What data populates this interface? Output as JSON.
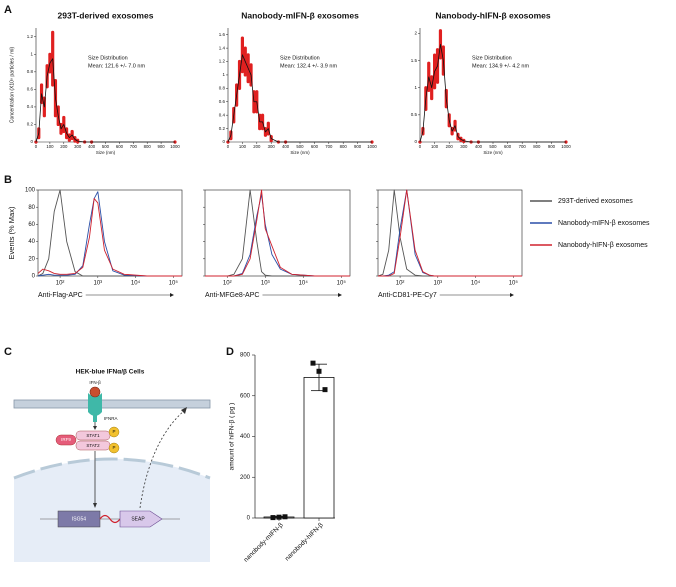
{
  "panel_labels": [
    "A",
    "B",
    "C",
    "D"
  ],
  "diagram": {
    "title": "HEK-blue IFNα/β Cells",
    "ligand": "IFN-β",
    "receptor": "IFNRA",
    "stat1": "STAT1",
    "stat2": "STAT2",
    "irf9": "IRF9",
    "phospho": [
      "P",
      "P"
    ],
    "gene": "ISG54",
    "reporter": "SEAP"
  },
  "chart_data": [
    {
      "type": "line",
      "title": "293T-derived exosomes",
      "xlabel": "Size (nm)",
      "ylabel": "Concentration (X10⁸ particles / ml)",
      "annotations": [
        "Size Distribution",
        "Mean: 121.6 +/- 7.0 nm"
      ],
      "x": [
        0,
        20,
        40,
        60,
        80,
        100,
        120,
        140,
        160,
        180,
        200,
        220,
        240,
        260,
        280,
        300,
        350,
        400,
        1000
      ],
      "series": [
        {
          "color": "#111111",
          "error_color": "#e02020",
          "values": [
            0,
            0.1,
            0.55,
            0.4,
            0.75,
            0.9,
            0.95,
            0.5,
            0.3,
            0.15,
            0.2,
            0.1,
            0.05,
            0.08,
            0.03,
            0.01,
            0,
            0,
            0
          ],
          "errors": [
            0,
            0.05,
            0.1,
            0.1,
            0.12,
            0.1,
            0.3,
            0.2,
            0.1,
            0.05,
            0.08,
            0.05,
            0.03,
            0.04,
            0.02,
            0.01,
            0,
            0,
            0
          ]
        }
      ],
      "xlim": [
        0,
        1000
      ],
      "xticks": [
        0,
        100,
        200,
        300,
        400,
        500,
        600,
        700,
        800,
        900,
        1000
      ],
      "ylim": [
        0,
        1.3
      ],
      "yticks": [
        0,
        0.2,
        0.4,
        0.6,
        0.8,
        1,
        1.2
      ]
    },
    {
      "type": "line",
      "title": "Nanobody-mIFN-β exosomes",
      "xlabel": "Size (nm)",
      "annotations": [
        "Size Distribution",
        "Mean: 132.4 +/- 3.9 nm"
      ],
      "x": [
        0,
        20,
        40,
        60,
        80,
        100,
        120,
        140,
        160,
        180,
        200,
        220,
        240,
        260,
        280,
        300,
        350,
        400,
        1000
      ],
      "series": [
        {
          "color": "#111111",
          "error_color": "#e02020",
          "values": [
            0,
            0.1,
            0.4,
            0.7,
            1.0,
            1.3,
            1.2,
            1.1,
            1.0,
            0.6,
            0.6,
            0.3,
            0.3,
            0.15,
            0.2,
            0.05,
            0,
            0,
            0
          ],
          "errors": [
            0,
            0.05,
            0.1,
            0.15,
            0.2,
            0.25,
            0.2,
            0.2,
            0.15,
            0.15,
            0.15,
            0.1,
            0.1,
            0.05,
            0.08,
            0.03,
            0,
            0,
            0
          ]
        }
      ],
      "xlim": [
        0,
        1000
      ],
      "xticks": [
        0,
        100,
        200,
        300,
        400,
        500,
        600,
        700,
        800,
        900,
        1000
      ],
      "ylim": [
        0,
        1.7
      ],
      "yticks": [
        0,
        0.2,
        0.4,
        0.6,
        0.8,
        1,
        1.2,
        1.4,
        1.6
      ]
    },
    {
      "type": "line",
      "title": "Nanobody-hIFN-β exosomes",
      "xlabel": "Size (nm)",
      "annotations": [
        "Size Distribution",
        "Mean: 134.9 +/- 4.2 nm"
      ],
      "x": [
        0,
        20,
        40,
        60,
        80,
        100,
        120,
        140,
        160,
        180,
        200,
        220,
        240,
        260,
        280,
        300,
        350,
        400,
        1000
      ],
      "series": [
        {
          "color": "#111111",
          "error_color": "#e02020",
          "values": [
            0,
            0.2,
            0.8,
            1.2,
            1.0,
            1.3,
            1.4,
            1.8,
            1.5,
            0.8,
            0.4,
            0.2,
            0.3,
            0.1,
            0.05,
            0.02,
            0,
            0,
            0
          ],
          "errors": [
            0,
            0.05,
            0.2,
            0.25,
            0.2,
            0.3,
            0.3,
            0.25,
            0.25,
            0.15,
            0.1,
            0.05,
            0.08,
            0.04,
            0.02,
            0.01,
            0,
            0,
            0
          ]
        }
      ],
      "xlim": [
        0,
        1000
      ],
      "xticks": [
        0,
        100,
        200,
        300,
        400,
        500,
        600,
        700,
        800,
        900,
        1000
      ],
      "ylim": [
        0,
        2.1
      ],
      "yticks": [
        0,
        0.5,
        1,
        1.5,
        2
      ]
    },
    {
      "type": "line",
      "xlog": true,
      "frame": true,
      "xlabel": "Anti-Flag-APC",
      "ylabel": "Events (% Max)",
      "x": [
        26,
        35,
        50,
        70,
        100,
        150,
        250,
        400,
        600,
        800,
        1000,
        1500,
        2500,
        5000,
        20000,
        60000,
        170000
      ],
      "series": [
        {
          "name": "293T-derived exosomes",
          "color": "#555555",
          "values": [
            0,
            3,
            20,
            75,
            100,
            40,
            5,
            0,
            0,
            0,
            0,
            0,
            0,
            0,
            0,
            0,
            0
          ]
        },
        {
          "name": "Nanobody-mIFN-β exosomes",
          "color": "#2a4fa8",
          "values": [
            0,
            1,
            2,
            1,
            1,
            1,
            2,
            12,
            60,
            90,
            98,
            40,
            6,
            1,
            0,
            0,
            0
          ]
        },
        {
          "name": "Nanobody-hIFN-β exosomes",
          "color": "#d0222e",
          "values": [
            3,
            8,
            6,
            3,
            2,
            2,
            3,
            10,
            45,
            90,
            85,
            30,
            8,
            2,
            0,
            0,
            0
          ]
        }
      ],
      "xlim": [
        26,
        170000
      ],
      "xticks": [
        {
          "value": 100,
          "label": "10²"
        },
        {
          "value": 1000,
          "label": "10³"
        },
        {
          "value": 10000,
          "label": "10⁴"
        },
        {
          "value": 100000,
          "label": "10⁵"
        }
      ],
      "ylim": [
        0,
        100
      ],
      "yticks": [
        0,
        20,
        40,
        60,
        80,
        100
      ]
    },
    {
      "type": "line",
      "xlog": true,
      "frame": true,
      "xlabel": "Anti-MFGe8-APC",
      "x": [
        26,
        35,
        50,
        70,
        100,
        150,
        250,
        400,
        600,
        800,
        1000,
        1500,
        2500,
        5000,
        20000,
        60000,
        170000
      ],
      "series": [
        {
          "color": "#555555",
          "values": [
            0,
            0,
            0,
            0,
            0,
            2,
            20,
            100,
            40,
            5,
            1,
            0,
            0,
            0,
            0,
            0,
            0
          ]
        },
        {
          "color": "#2a4fa8",
          "values": [
            0,
            0,
            0,
            0,
            0,
            0,
            3,
            25,
            70,
            95,
            60,
            25,
            8,
            2,
            0,
            0,
            0
          ]
        },
        {
          "color": "#d0222e",
          "values": [
            0,
            0,
            0,
            0,
            0,
            0,
            2,
            20,
            65,
            100,
            55,
            35,
            10,
            2,
            0,
            0,
            0
          ]
        }
      ],
      "xlim": [
        26,
        170000
      ],
      "xticks": [
        {
          "value": 100,
          "label": "10²"
        },
        {
          "value": 1000,
          "label": "10³"
        },
        {
          "value": 10000,
          "label": "10⁴"
        },
        {
          "value": 100000,
          "label": "10⁵"
        }
      ],
      "ylim": [
        0,
        100
      ],
      "yticks": [
        0,
        20,
        40,
        60,
        80,
        100
      ]
    },
    {
      "type": "line",
      "xlog": true,
      "frame": true,
      "xlabel": "Anti-CD81-PE-Cy7",
      "x": [
        26,
        35,
        50,
        70,
        100,
        150,
        250,
        400,
        600,
        800,
        1000,
        1500,
        2500,
        5000,
        20000,
        60000,
        170000
      ],
      "series": [
        {
          "color": "#555555",
          "values": [
            0,
            2,
            30,
            100,
            45,
            8,
            1,
            0,
            0,
            0,
            0,
            0,
            0,
            0,
            0,
            0,
            0
          ]
        },
        {
          "color": "#2a4fa8",
          "values": [
            0,
            0,
            1,
            5,
            55,
            100,
            25,
            4,
            1,
            0,
            0,
            0,
            0,
            0,
            0,
            0,
            0
          ]
        },
        {
          "color": "#d0222e",
          "values": [
            0,
            0,
            0,
            3,
            45,
            100,
            30,
            5,
            1,
            0,
            0,
            0,
            0,
            0,
            0,
            0,
            0
          ]
        }
      ],
      "xlim": [
        26,
        170000
      ],
      "xticks": [
        {
          "value": 100,
          "label": "10²"
        },
        {
          "value": 1000,
          "label": "10³"
        },
        {
          "value": 10000,
          "label": "10⁴"
        },
        {
          "value": 100000,
          "label": "10⁵"
        }
      ],
      "ylim": [
        0,
        100
      ],
      "yticks": [
        0,
        20,
        40,
        60,
        80,
        100
      ]
    },
    {
      "type": "bar",
      "ylabel": "amount of hIFN-β ( pg )",
      "categories": [
        "nanobody-mIFN-β",
        "nanobody-hIFN-β"
      ],
      "values": [
        5,
        690
      ],
      "errors": [
        3,
        65
      ],
      "points": [
        [
          2,
          4,
          6
        ],
        [
          760,
          720,
          630
        ]
      ],
      "color": "#ffffff",
      "ylim": [
        0,
        800
      ],
      "yticks": [
        0,
        200,
        400,
        600,
        800
      ]
    }
  ]
}
